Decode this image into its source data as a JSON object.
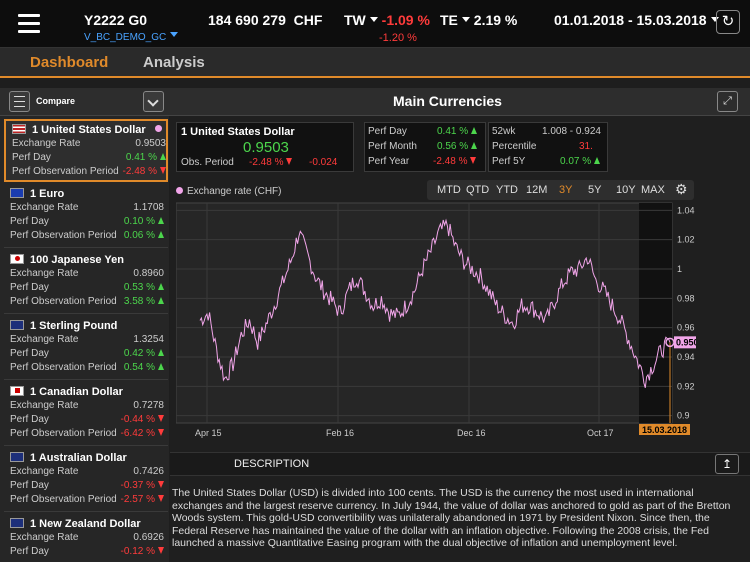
{
  "header": {
    "portfolio": "Y2222 G0",
    "account": "V_BC_DEMO_GC",
    "amount": "184 690 279",
    "currency": "CHF",
    "tw_label": "TW",
    "tw_value": "-1.09 %",
    "tw_sub": "-1.20 %",
    "te_label": "TE",
    "te_value": "2.19 %",
    "date_range": "01.01.2018 - 15.03.2018"
  },
  "tabs": [
    "Dashboard",
    "Analysis"
  ],
  "toolbar": {
    "compare_label": "Compare",
    "panel_title": "Main Currencies"
  },
  "currencies": [
    {
      "name": "1 United States Dollar",
      "flag": "us",
      "rate": "0.9503",
      "perf_day": "0.41 %",
      "perf_day_dir": "up",
      "perf_obs": "-2.48 %",
      "perf_obs_dir": "dn",
      "selected": true
    },
    {
      "name": "1 Euro",
      "flag": "eu",
      "rate": "1.1708",
      "perf_day": "0.10 %",
      "perf_day_dir": "up",
      "perf_obs": "0.06 %",
      "perf_obs_dir": "up"
    },
    {
      "name": "100 Japanese Yen",
      "flag": "jp",
      "rate": "0.8960",
      "perf_day": "0.53 %",
      "perf_day_dir": "up",
      "perf_obs": "3.58 %",
      "perf_obs_dir": "up"
    },
    {
      "name": "1 Sterling Pound",
      "flag": "gb",
      "rate": "1.3254",
      "perf_day": "0.42 %",
      "perf_day_dir": "up",
      "perf_obs": "0.54 %",
      "perf_obs_dir": "up"
    },
    {
      "name": "1 Canadian Dollar",
      "flag": "ca",
      "rate": "0.7278",
      "perf_day": "-0.44 %",
      "perf_day_dir": "dn",
      "perf_obs": "-6.42 %",
      "perf_obs_dir": "dn"
    },
    {
      "name": "1 Australian Dollar",
      "flag": "au",
      "rate": "0.7426",
      "perf_day": "-0.37 %",
      "perf_day_dir": "dn",
      "perf_obs": "-2.57 %",
      "perf_obs_dir": "dn"
    },
    {
      "name": "1 New Zealand Dollar",
      "flag": "nz",
      "rate": "0.6926",
      "perf_day": "-0.12 %",
      "perf_day_dir": "dn"
    }
  ],
  "row_labels": {
    "rate": "Exchange Rate",
    "day": "Perf Day",
    "obs": "Perf Observation Period"
  },
  "detail": {
    "name": "1 United States Dollar",
    "rate": "0.9503",
    "obs_label": "Obs. Period",
    "obs_pct": "-2.48 %",
    "obs_abs": "-0.024",
    "perf_day_label": "Perf Day",
    "perf_day": "0.41 %",
    "perf_month_label": "Perf Month",
    "perf_month": "0.56 %",
    "perf_year_label": "Perf Year",
    "perf_year": "-2.48 %",
    "wk52_label": "52wk",
    "wk52": "1.008 - 0.924",
    "percentile_label": "Percentile",
    "percentile": "31.",
    "perf5y_label": "Perf 5Y",
    "perf5y": "0.07 %"
  },
  "ranges": [
    "MTD",
    "QTD",
    "YTD",
    "12M",
    "3Y",
    "5Y",
    "10Y",
    "MAX"
  ],
  "active_range": "3Y",
  "colors": {
    "accent": "#e08a2a",
    "up": "#4cd64c",
    "down": "#ff3b3b",
    "series": "#f1a5e9",
    "link": "#4aa3ff"
  },
  "chart_data": {
    "type": "line",
    "legend": "Exchange rate (CHF)",
    "ylim": [
      0.895,
      1.045
    ],
    "yticks": [
      "1.04",
      "1.02",
      "1",
      "0.98",
      "0.96",
      "0.94",
      "0.92",
      "0.9"
    ],
    "xticks": [
      "Apr 15",
      "Feb 16",
      "Dec 16",
      "Oct 17"
    ],
    "current_value": "0.9503",
    "current_date": "15.03.2018",
    "series": [
      {
        "values": [
          0.965,
          0.97,
          0.945,
          0.925,
          0.935,
          0.955,
          0.965,
          0.95,
          0.962,
          0.975,
          0.99,
          1.005,
          1.025,
          1.01,
          0.995,
          0.985,
          0.978,
          0.97,
          0.985,
          0.995,
          0.985,
          0.975,
          0.98,
          0.97,
          0.968,
          0.975,
          0.985,
          1.0,
          1.012,
          1.025,
          1.03,
          1.015,
          1.005,
          1.0,
          0.995,
          0.985,
          0.975,
          0.968,
          0.963,
          0.975,
          0.975,
          0.97,
          0.965,
          0.978,
          0.99,
          0.998,
          1.0,
          1.008,
          0.992,
          0.985,
          0.975,
          0.965,
          0.952,
          0.938,
          0.925,
          0.935,
          0.945,
          0.95
        ]
      }
    ]
  },
  "description": {
    "heading": "DESCRIPTION",
    "text": "The United States Dollar (USD) is divided into 100 cents. The USD is the currency the most used in international exchanges and the largest reserve currency. In July 1944, the value of dollar was anchored to gold as part of the Bretton Woods system. This gold-USD convertibility was unilaterally abandoned in 1971 by President Nixon. Since then, the Federal Reserve has maintained the value of the dollar with an inflation objective. Following the 2008 crisis, the Fed launched a massive Quantitative Easing program with the dual objective of inflation and unemployment level."
  }
}
